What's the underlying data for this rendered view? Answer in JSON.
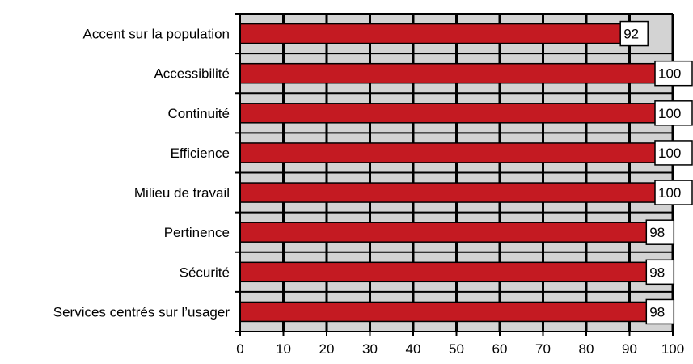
{
  "chart_data": {
    "type": "bar",
    "orientation": "horizontal",
    "categories": [
      "Accent sur la population",
      "Accessibilité",
      "Continuité",
      "Efficience",
      "Milieu de travail",
      "Pertinence",
      "Sécurité",
      "Services centrés sur l’usager"
    ],
    "values": [
      92,
      100,
      100,
      100,
      100,
      98,
      98,
      98
    ],
    "data_labels": [
      "92",
      "100",
      "100",
      "100",
      "100",
      "98",
      "98",
      "98"
    ],
    "xlim": [
      0,
      100
    ],
    "x_ticks": [
      0,
      10,
      20,
      30,
      40,
      50,
      60,
      70,
      80,
      90,
      100
    ],
    "x_tick_labels": [
      "0",
      "10",
      "20",
      "30",
      "40",
      "50",
      "60",
      "70",
      "80",
      "90",
      "100"
    ],
    "grid": true,
    "legend": "none",
    "title": "",
    "xlabel": "",
    "ylabel": "",
    "colors": {
      "bar": "#c41a22",
      "plot_background": "#d3d3d3",
      "grid_line": "#000000",
      "label_box": "#ffffff"
    }
  }
}
